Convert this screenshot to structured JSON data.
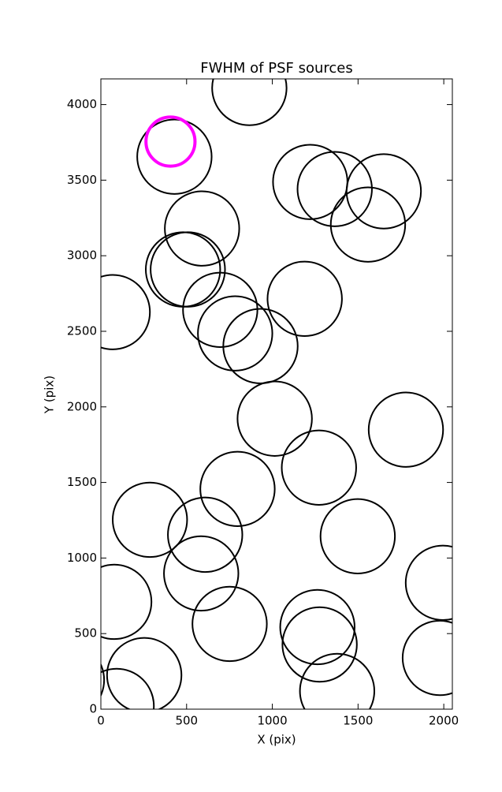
{
  "chart_data": {
    "type": "scatter",
    "title": "FWHM of PSF sources",
    "xlabel": "X (pix)",
    "ylabel": "Y (pix)",
    "xlim": [
      0,
      2050
    ],
    "ylim": [
      0,
      4170
    ],
    "xticks": [
      0,
      500,
      1000,
      1500,
      2000
    ],
    "yticks": [
      0,
      500,
      1000,
      1500,
      2000,
      2500,
      3000,
      3500,
      4000
    ],
    "series": [
      {
        "color": "#000000",
        "x": [
          866,
          429,
          1221,
          1364,
          1650,
          1558,
          590,
          479,
          507,
          69,
          696,
          1189,
          783,
          931,
          1014,
          1779,
          1272,
          797,
          286,
          608,
          1498,
          585,
          78,
          1995,
          751,
          1263,
          1276,
          1977,
          253,
          1378,
          -198,
          92
        ],
        "values": [
          4110,
          3655,
          3488,
          3441,
          3426,
          3206,
          3180,
          2909,
          2909,
          2627,
          2642,
          2715,
          2486,
          2402,
          1922,
          1849,
          1598,
          1457,
          1253,
          1154,
          1144,
          898,
          710,
          836,
          564,
          543,
          428,
          339,
          225,
          120,
          193,
          21
        ],
        "sizes": [
          217,
          217,
          217,
          217,
          217,
          217,
          217,
          217,
          217,
          217,
          217,
          217,
          217,
          217,
          217,
          217,
          217,
          217,
          217,
          217,
          217,
          217,
          217,
          217,
          217,
          217,
          217,
          217,
          217,
          217,
          217,
          217
        ]
      },
      {
        "color": "#ff00ff",
        "x": [
          406
        ],
        "values": [
          3755
        ],
        "sizes": [
          143
        ]
      }
    ]
  }
}
